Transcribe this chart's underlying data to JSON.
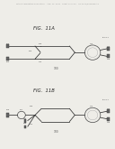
{
  "bg_color": "#eeede8",
  "header_text": "Patent Application Publication    Aug. 11, 2011   Sheet 11 of 24    US 2011/0194808 A1",
  "fig1_label": "FIG.  11A",
  "fig2_label": "FIG.  11B",
  "box_facecolor": "#f8f8f6",
  "box_edge": "#999999",
  "line_color": "#333333",
  "label_color": "#555555",
  "square_fill": "#666666",
  "square_edge": "#333333",
  "ring_edge": "#555555",
  "note1": "FIG 11A: Mach-Zehnder with Y-splitter on left, ring resonator on right",
  "note2": "FIG 11B: Same but with small ring resonator on input left side too"
}
